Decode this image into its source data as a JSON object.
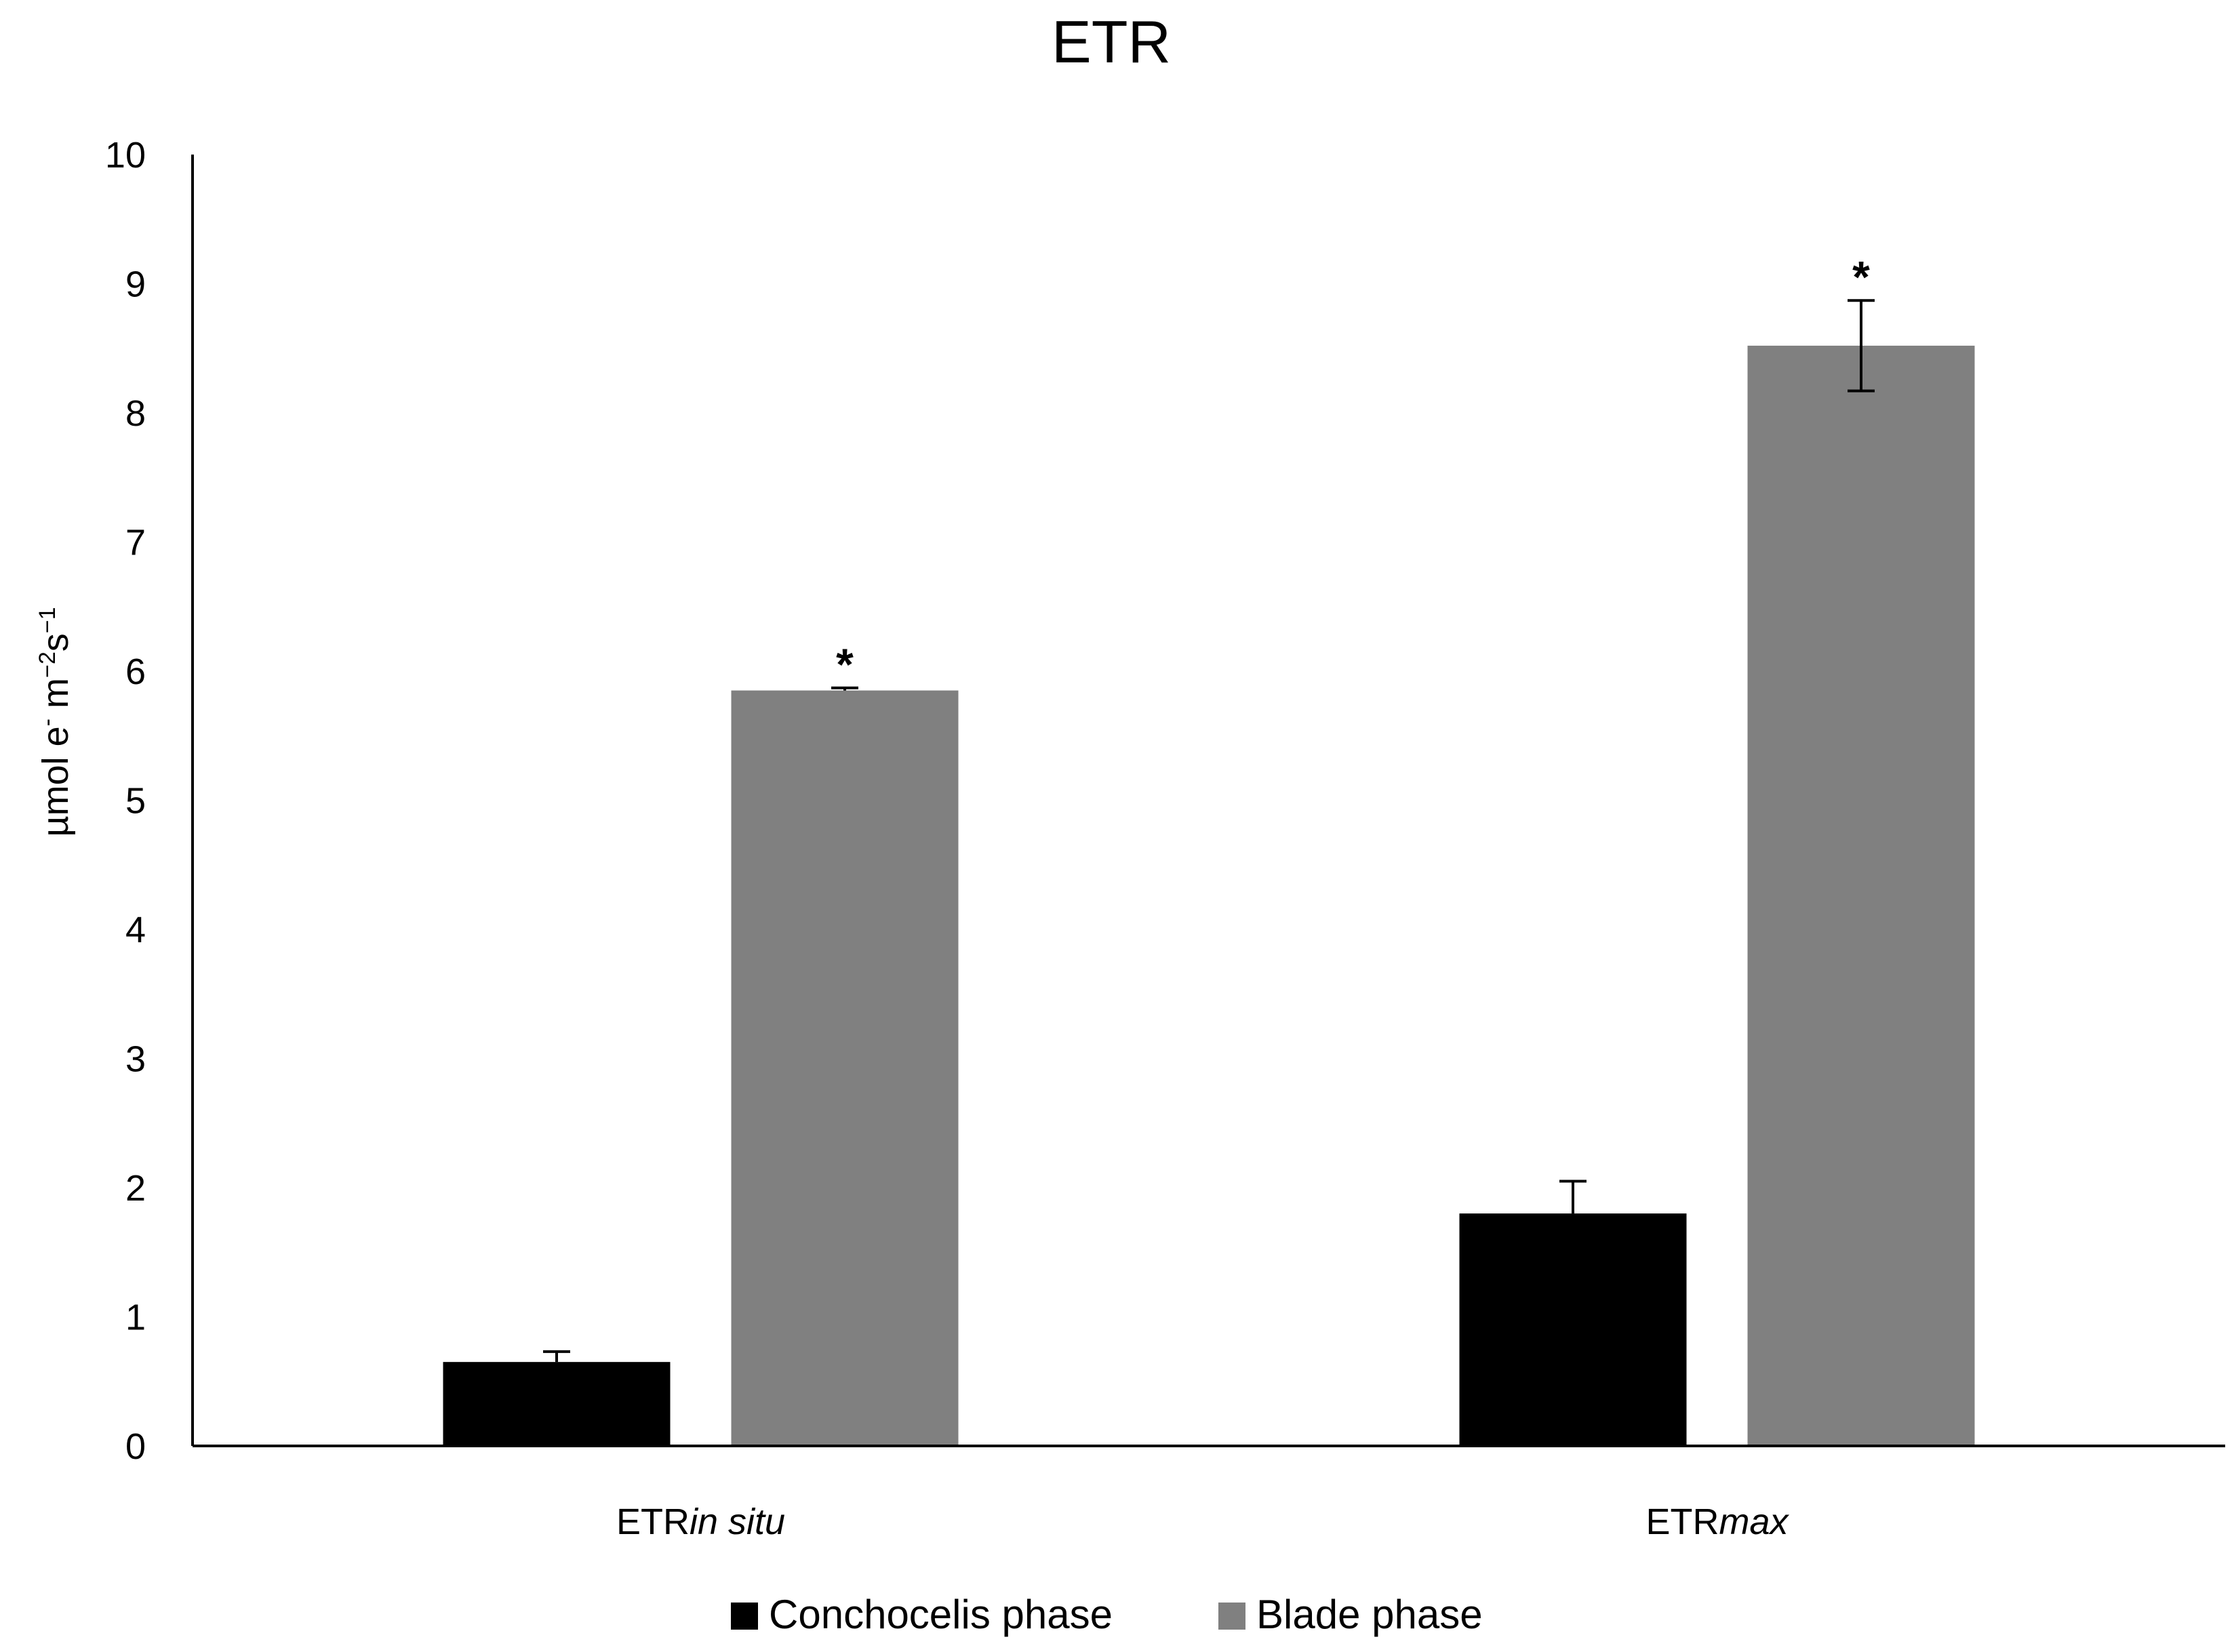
{
  "chart_data": {
    "type": "bar",
    "title": "ETR",
    "xlabel": "",
    "ylabel": {
      "base": "µmol e",
      "sup1": "-",
      "mid1": " m",
      "sup2": "−2",
      "mid2": "s",
      "sup3": "−1"
    },
    "ylim": [
      0,
      10
    ],
    "yticks": [
      0,
      1,
      2,
      3,
      4,
      5,
      6,
      7,
      8,
      9,
      10
    ],
    "grid": false,
    "legend_position": "bottom",
    "categories": [
      {
        "prefix": "ETR",
        "italic": "in situ"
      },
      {
        "prefix": "ETR",
        "italic": "max"
      }
    ],
    "series": [
      {
        "name": "Conchocelis phase",
        "color": "#000000",
        "values": [
          0.65,
          1.8
        ],
        "errors": [
          0.08,
          0.25
        ],
        "significance": [
          "",
          ""
        ]
      },
      {
        "name": "Blade phase",
        "color": "#808080",
        "values": [
          5.85,
          8.52
        ],
        "errors": [
          0.02,
          0.35
        ],
        "significance": [
          "*",
          "*"
        ]
      }
    ]
  }
}
